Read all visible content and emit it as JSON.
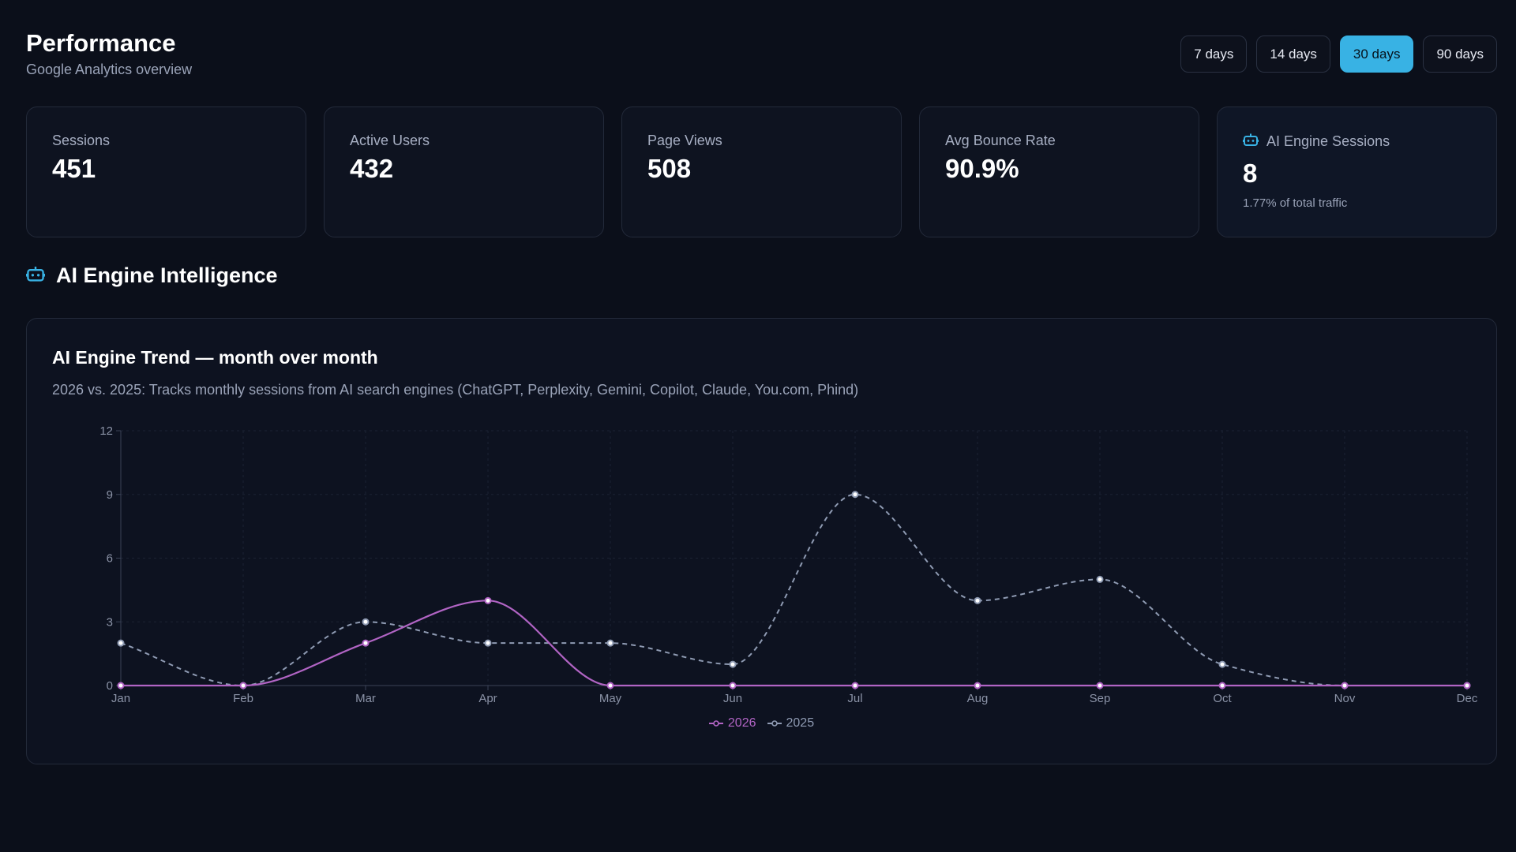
{
  "header": {
    "title": "Performance",
    "subtitle": "Google Analytics overview"
  },
  "ranges": [
    {
      "label": "7 days",
      "active": false
    },
    {
      "label": "14 days",
      "active": false
    },
    {
      "label": "30 days",
      "active": true
    },
    {
      "label": "90 days",
      "active": false
    }
  ],
  "stats": [
    {
      "label": "Sessions",
      "value": "451"
    },
    {
      "label": "Active Users",
      "value": "432"
    },
    {
      "label": "Page Views",
      "value": "508"
    },
    {
      "label": "Avg Bounce Rate",
      "value": "90.9%"
    },
    {
      "label": "AI Engine Sessions",
      "value": "8",
      "note": "1.77% of total traffic",
      "icon": "robot-icon"
    }
  ],
  "section": {
    "title": "AI Engine Intelligence",
    "icon": "robot-icon"
  },
  "chart_card": {
    "title": "AI Engine Trend — month over month",
    "description": "2026 vs. 2025: Tracks monthly sessions from AI search engines (ChatGPT, Perplexity, Gemini, Copilot, Claude, You.com, Phind)"
  },
  "colors": {
    "accent": "#38b2e4",
    "series_2026": "#b164c4",
    "series_2025": "#8f9bb3",
    "background": "#0b0f1a"
  },
  "chart_data": {
    "type": "line",
    "title": "AI Engine Trend — month over month",
    "categories": [
      "Jan",
      "Feb",
      "Mar",
      "Apr",
      "May",
      "Jun",
      "Jul",
      "Aug",
      "Sep",
      "Oct",
      "Nov",
      "Dec"
    ],
    "series": [
      {
        "name": "2026",
        "values": [
          0,
          0,
          2,
          4,
          0,
          0,
          0,
          0,
          0,
          0,
          0,
          0
        ],
        "style": "solid"
      },
      {
        "name": "2025",
        "values": [
          2,
          0,
          3,
          2,
          2,
          1,
          9,
          4,
          5,
          1,
          0,
          0
        ],
        "style": "dashed"
      }
    ],
    "yticks": [
      0,
      3,
      6,
      9,
      12
    ],
    "ylim": [
      0,
      12
    ],
    "xlabel": "",
    "ylabel": "",
    "grid": true,
    "legend": "bottom-center"
  }
}
